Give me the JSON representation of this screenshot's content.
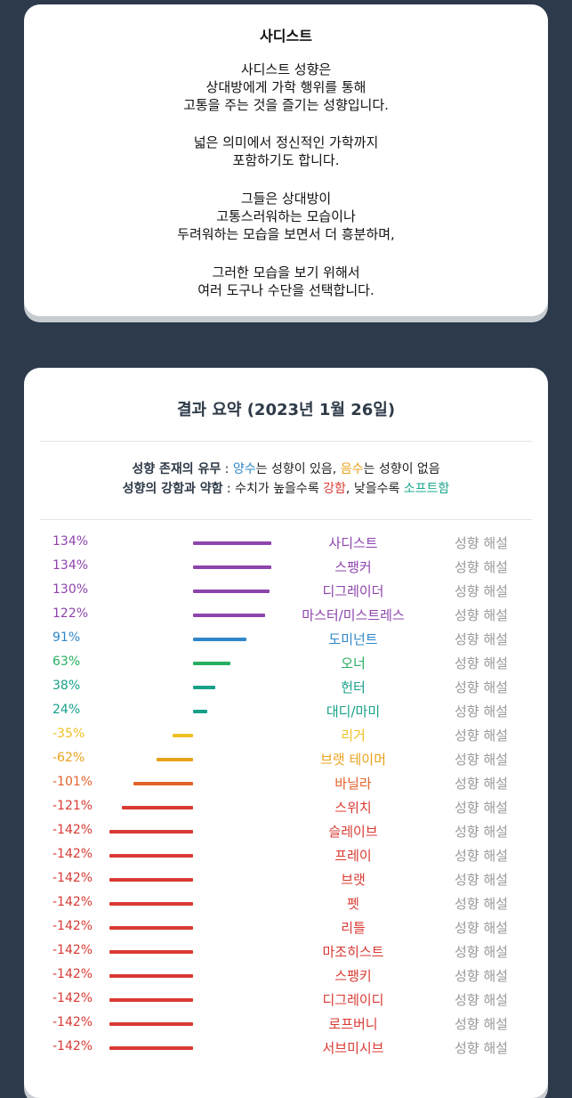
{
  "description": {
    "title": "사디스트",
    "paragraphs": [
      [
        "사디스트 성향은",
        "상대방에게 가학 행위를 통해",
        "고통을 주는 것을 즐기는 성향입니다."
      ],
      [
        "넓은 의미에서 정신적인 가학까지",
        "포함하기도 합니다."
      ],
      [
        "그들은 상대방이",
        "고통스러워하는 모습이나",
        "두려워하는 모습을 보면서 더 흥분하며,"
      ],
      [
        "그러한 모습을 보기 위해서",
        "여러 도구나 수단을 선택합니다."
      ]
    ]
  },
  "result": {
    "title": "결과 요약 (2023년 1월 26일)",
    "legend1": {
      "label": "성향 존재의 유무",
      "sep": " : ",
      "positive": "양수",
      "mid1": "는 성향이 있음, ",
      "negative": "음수",
      "mid2": "는 성향이 없음"
    },
    "legend2": {
      "label": "성향의 강함과 약함",
      "sep": " : 수치가 높을수록 ",
      "strong": "강함",
      "mid": ", 낮을수록 ",
      "soft": "소프트함"
    },
    "explain_label": "성향 해설",
    "colors": {
      "purple": "#8e44ad",
      "blue": "#2f86c9",
      "green": "#27ae60",
      "teal": "#17a08a",
      "yellow": "#efc023",
      "orange": "#e8a21b",
      "darkorange": "#e2632b",
      "red": "#d93a33"
    },
    "rows": [
      {
        "percent": "134%",
        "value": 134,
        "name": "사디스트",
        "color": "#8e44ad"
      },
      {
        "percent": "134%",
        "value": 134,
        "name": "스팽커",
        "color": "#8e44ad"
      },
      {
        "percent": "130%",
        "value": 130,
        "name": "디그레이더",
        "color": "#8e44ad"
      },
      {
        "percent": "122%",
        "value": 122,
        "name": "마스터/미스트레스",
        "color": "#8e44ad"
      },
      {
        "percent": "91%",
        "value": 91,
        "name": "도미넌트",
        "color": "#2f86c9"
      },
      {
        "percent": "63%",
        "value": 63,
        "name": "오너",
        "color": "#27ae60"
      },
      {
        "percent": "38%",
        "value": 38,
        "name": "헌터",
        "color": "#17a08a"
      },
      {
        "percent": "24%",
        "value": 24,
        "name": "대디/마미",
        "color": "#17a08a"
      },
      {
        "percent": "-35%",
        "value": -35,
        "name": "리거",
        "color": "#efc023"
      },
      {
        "percent": "-62%",
        "value": -62,
        "name": "브랫 테이머",
        "color": "#e8a21b"
      },
      {
        "percent": "-101%",
        "value": -101,
        "name": "바닐라",
        "color": "#e2632b"
      },
      {
        "percent": "-121%",
        "value": -121,
        "name": "스위치",
        "color": "#d93a33"
      },
      {
        "percent": "-142%",
        "value": -142,
        "name": "슬레이브",
        "color": "#d93a33"
      },
      {
        "percent": "-142%",
        "value": -142,
        "name": "프레이",
        "color": "#d93a33"
      },
      {
        "percent": "-142%",
        "value": -142,
        "name": "브랫",
        "color": "#d93a33"
      },
      {
        "percent": "-142%",
        "value": -142,
        "name": "펫",
        "color": "#d93a33"
      },
      {
        "percent": "-142%",
        "value": -142,
        "name": "리틀",
        "color": "#d93a33"
      },
      {
        "percent": "-142%",
        "value": -142,
        "name": "마조히스트",
        "color": "#d93a33"
      },
      {
        "percent": "-142%",
        "value": -142,
        "name": "스팽키",
        "color": "#d93a33"
      },
      {
        "percent": "-142%",
        "value": -142,
        "name": "디그레이디",
        "color": "#d93a33"
      },
      {
        "percent": "-142%",
        "value": -142,
        "name": "로프버니",
        "color": "#d93a33"
      },
      {
        "percent": "-142%",
        "value": -142,
        "name": "서브미시브",
        "color": "#d93a33"
      }
    ]
  }
}
